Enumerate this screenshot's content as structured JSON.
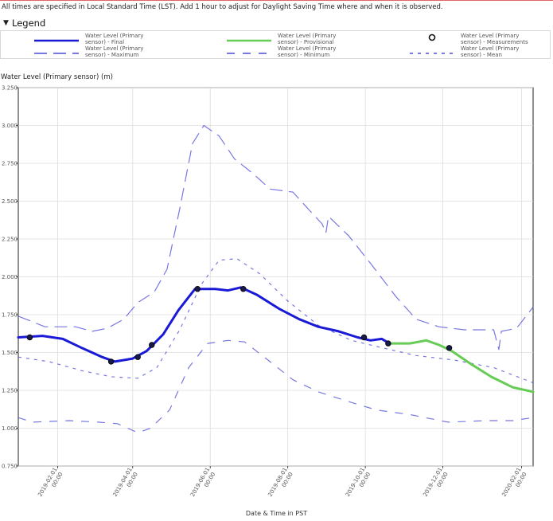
{
  "notice": "All times are specified in Local Standard Time (LST). Add 1 hour to adjust for Daylight Saving Time where and when it is observed.",
  "legend": {
    "title": "Legend",
    "items": [
      {
        "label": "Water Level (Primary sensor) - Final",
        "style": "solid",
        "color": "#1a1ad6"
      },
      {
        "label": "Water Level (Primary sensor) - Provisional",
        "style": "solid",
        "color": "#66cc55"
      },
      {
        "label": "Water Level (Primary sensor) - Measurements",
        "style": "circle",
        "color": "#111111"
      },
      {
        "label": "Water Level (Primary sensor) - Maximum",
        "style": "long-dash",
        "color": "#4a4ad8"
      },
      {
        "label": "Water Level (Primary sensor) - Minimum",
        "style": "dash",
        "color": "#4a4ad8"
      },
      {
        "label": "Water Level (Primary sensor) - Mean",
        "style": "dot-dash",
        "color": "#4a4ad8"
      }
    ]
  },
  "chart_data": {
    "type": "line",
    "ylabel": "Water Level (Primary sensor) (m)",
    "xlabel": "Date & Time in PST",
    "ylim": [
      0.75,
      3.25
    ],
    "yticks": [
      "0.750",
      "1.000",
      "1.250",
      "1.500",
      "1.750",
      "2.000",
      "2.250",
      "2.500",
      "2.750",
      "3.000",
      "3.250"
    ],
    "xlim": [
      "2019-01-01",
      "2020-02-10"
    ],
    "xticks": [
      {
        "date": "2019-02-01",
        "label": "2019-02-01 00:00"
      },
      {
        "date": "2019-04-01",
        "label": "2019-04-01 00:00"
      },
      {
        "date": "2019-06-01",
        "label": "2019-06-01 00:00"
      },
      {
        "date": "2019-08-01",
        "label": "2019-08-01 00:00"
      },
      {
        "date": "2019-10-01",
        "label": "2019-10-01 00:00"
      },
      {
        "date": "2019-12-01",
        "label": "2019-12-01 00:00"
      },
      {
        "date": "2020-02-01",
        "label": "2020-02-01 00:00"
      }
    ],
    "grid": true,
    "series": [
      {
        "name": "Water Level (Primary sensor) - Final",
        "style": "solid",
        "color": "#1a1ad6",
        "points": [
          [
            "2019-01-01",
            1.6
          ],
          [
            "2019-01-20",
            1.61
          ],
          [
            "2019-02-05",
            1.59
          ],
          [
            "2019-02-20",
            1.53
          ],
          [
            "2019-03-08",
            1.47
          ],
          [
            "2019-03-18",
            1.44
          ],
          [
            "2019-04-01",
            1.46
          ],
          [
            "2019-04-12",
            1.51
          ],
          [
            "2019-04-25",
            1.62
          ],
          [
            "2019-05-07",
            1.78
          ],
          [
            "2019-05-20",
            1.92
          ],
          [
            "2019-06-05",
            1.92
          ],
          [
            "2019-06-15",
            1.91
          ],
          [
            "2019-06-25",
            1.93
          ],
          [
            "2019-07-08",
            1.88
          ],
          [
            "2019-07-25",
            1.79
          ],
          [
            "2019-08-10",
            1.72
          ],
          [
            "2019-08-25",
            1.67
          ],
          [
            "2019-09-10",
            1.64
          ],
          [
            "2019-09-25",
            1.6
          ],
          [
            "2019-10-05",
            1.58
          ],
          [
            "2019-10-14",
            1.59
          ],
          [
            "2019-10-20",
            1.56
          ]
        ]
      },
      {
        "name": "Water Level (Primary sensor) - Provisional",
        "style": "solid",
        "color": "#66cc55",
        "points": [
          [
            "2019-10-20",
            1.56
          ],
          [
            "2019-11-05",
            1.56
          ],
          [
            "2019-11-18",
            1.58
          ],
          [
            "2019-11-28",
            1.55
          ],
          [
            "2019-12-08",
            1.51
          ],
          [
            "2019-12-22",
            1.43
          ],
          [
            "2020-01-08",
            1.34
          ],
          [
            "2020-01-25",
            1.27
          ],
          [
            "2020-02-10",
            1.24
          ]
        ]
      },
      {
        "name": "Water Level (Primary sensor) - Maximum",
        "style": "long-dash",
        "color": "#4a4ad8",
        "points": [
          [
            "2019-01-01",
            1.74
          ],
          [
            "2019-01-10",
            1.71
          ],
          [
            "2019-01-22",
            1.67
          ],
          [
            "2019-02-15",
            1.67
          ],
          [
            "2019-02-28",
            1.64
          ],
          [
            "2019-03-12",
            1.66
          ],
          [
            "2019-03-25",
            1.72
          ],
          [
            "2019-04-05",
            1.83
          ],
          [
            "2019-04-18",
            1.9
          ],
          [
            "2019-04-28",
            2.05
          ],
          [
            "2019-05-08",
            2.45
          ],
          [
            "2019-05-18",
            2.88
          ],
          [
            "2019-05-27",
            3.0
          ],
          [
            "2019-06-08",
            2.93
          ],
          [
            "2019-06-20",
            2.78
          ],
          [
            "2019-07-05",
            2.68
          ],
          [
            "2019-07-18",
            2.58
          ],
          [
            "2019-08-05",
            2.56
          ],
          [
            "2019-08-18",
            2.44
          ],
          [
            "2019-08-28",
            2.35
          ],
          [
            "2019-08-31",
            2.29
          ],
          [
            "2019-09-02",
            2.4
          ],
          [
            "2019-09-18",
            2.27
          ],
          [
            "2019-10-05",
            2.09
          ],
          [
            "2019-10-25",
            1.87
          ],
          [
            "2019-11-10",
            1.72
          ],
          [
            "2019-11-28",
            1.67
          ],
          [
            "2019-12-18",
            1.65
          ],
          [
            "2020-01-10",
            1.65
          ],
          [
            "2020-01-14",
            1.52
          ],
          [
            "2020-01-16",
            1.64
          ],
          [
            "2020-01-28",
            1.66
          ],
          [
            "2020-02-10",
            1.8
          ]
        ]
      },
      {
        "name": "Water Level (Primary sensor) - Minimum",
        "style": "dash",
        "color": "#4a4ad8",
        "points": [
          [
            "2019-01-01",
            1.07
          ],
          [
            "2019-01-12",
            1.04
          ],
          [
            "2019-02-10",
            1.05
          ],
          [
            "2019-03-05",
            1.04
          ],
          [
            "2019-03-20",
            1.03
          ],
          [
            "2019-04-05",
            0.97
          ],
          [
            "2019-04-15",
            1.0
          ],
          [
            "2019-04-30",
            1.12
          ],
          [
            "2019-05-15",
            1.4
          ],
          [
            "2019-05-30",
            1.56
          ],
          [
            "2019-06-15",
            1.58
          ],
          [
            "2019-06-28",
            1.57
          ],
          [
            "2019-07-15",
            1.46
          ],
          [
            "2019-08-05",
            1.32
          ],
          [
            "2019-08-25",
            1.24
          ],
          [
            "2019-09-20",
            1.17
          ],
          [
            "2019-10-10",
            1.12
          ],
          [
            "2019-11-05",
            1.09
          ],
          [
            "2019-12-05",
            1.04
          ],
          [
            "2020-01-05",
            1.05
          ],
          [
            "2020-01-25",
            1.05
          ],
          [
            "2020-02-10",
            1.07
          ]
        ]
      },
      {
        "name": "Water Level (Primary sensor) - Mean",
        "style": "dot-dash",
        "color": "#4a4ad8",
        "points": [
          [
            "2019-01-01",
            1.47
          ],
          [
            "2019-01-25",
            1.44
          ],
          [
            "2019-02-20",
            1.38
          ],
          [
            "2019-03-15",
            1.34
          ],
          [
            "2019-04-05",
            1.33
          ],
          [
            "2019-04-20",
            1.4
          ],
          [
            "2019-05-08",
            1.65
          ],
          [
            "2019-05-25",
            1.95
          ],
          [
            "2019-06-08",
            2.11
          ],
          [
            "2019-06-22",
            2.12
          ],
          [
            "2019-07-10",
            2.02
          ],
          [
            "2019-08-01",
            1.84
          ],
          [
            "2019-08-25",
            1.68
          ],
          [
            "2019-09-20",
            1.58
          ],
          [
            "2019-10-15",
            1.53
          ],
          [
            "2019-11-10",
            1.48
          ],
          [
            "2019-12-10",
            1.45
          ],
          [
            "2020-01-10",
            1.4
          ],
          [
            "2020-02-10",
            1.3
          ]
        ]
      },
      {
        "name": "Water Level (Primary sensor) - Measurements",
        "style": "circle",
        "color": "#111111",
        "points": [
          [
            "2019-01-10",
            1.6
          ],
          [
            "2019-03-15",
            1.44
          ],
          [
            "2019-04-05",
            1.47
          ],
          [
            "2019-04-16",
            1.55
          ],
          [
            "2019-05-22",
            1.92
          ],
          [
            "2019-06-27",
            1.92
          ],
          [
            "2019-09-30",
            1.6
          ],
          [
            "2019-10-19",
            1.56
          ],
          [
            "2019-12-06",
            1.53
          ]
        ]
      }
    ]
  }
}
